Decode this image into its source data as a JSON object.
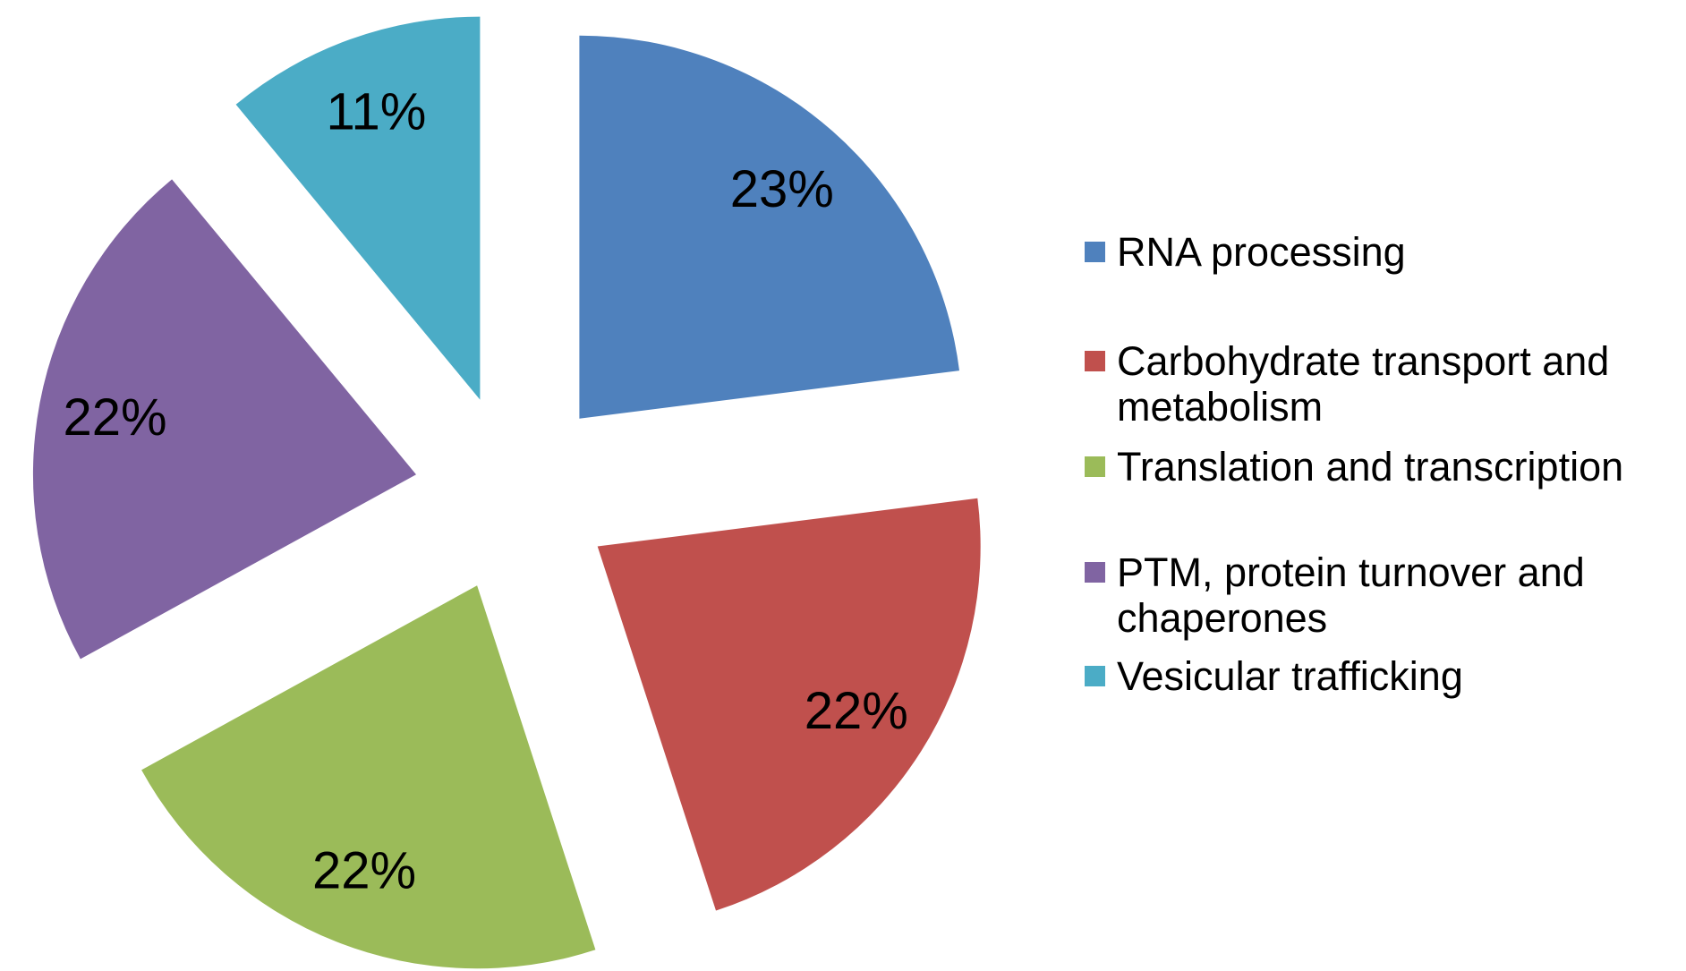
{
  "chart_data": {
    "type": "pie",
    "title": "",
    "exploded": true,
    "start_angle_deg": 0,
    "direction": "clockwise",
    "legend_position": "right",
    "categories": [
      "RNA processing",
      "Carbohydrate transport and metabolism",
      "Translation and transcription",
      "PTM, protein turnover and chaperones",
      "Vesicular trafficking"
    ],
    "values": [
      23,
      22,
      22,
      22,
      11
    ],
    "slices": [
      {
        "name": "RNA processing",
        "value": 23,
        "display": "23%",
        "color": "#4F81BD"
      },
      {
        "name": "Carbohydrate transport and metabolism",
        "value": 22,
        "display": "22%",
        "color": "#C0504D"
      },
      {
        "name": "Translation and transcription",
        "value": 22,
        "display": "22%",
        "color": "#9BBB59"
      },
      {
        "name": "PTM, protein turnover and chaperones",
        "value": 22,
        "display": "22%",
        "color": "#8064A2"
      },
      {
        "name": "Vesicular trafficking",
        "value": 11,
        "display": "11%",
        "color": "#4BACC6"
      }
    ]
  },
  "legend": {
    "items": [
      {
        "label": "RNA processing",
        "color": "#4F81BD"
      },
      {
        "label": "Carbohydrate transport and\nmetabolism",
        "color": "#C0504D"
      },
      {
        "label": "Translation and transcription",
        "color": "#9BBB59"
      },
      {
        "label": "PTM, protein turnover and\nchaperones",
        "color": "#8064A2"
      },
      {
        "label": "Vesicular trafficking",
        "color": "#4BACC6"
      }
    ]
  }
}
